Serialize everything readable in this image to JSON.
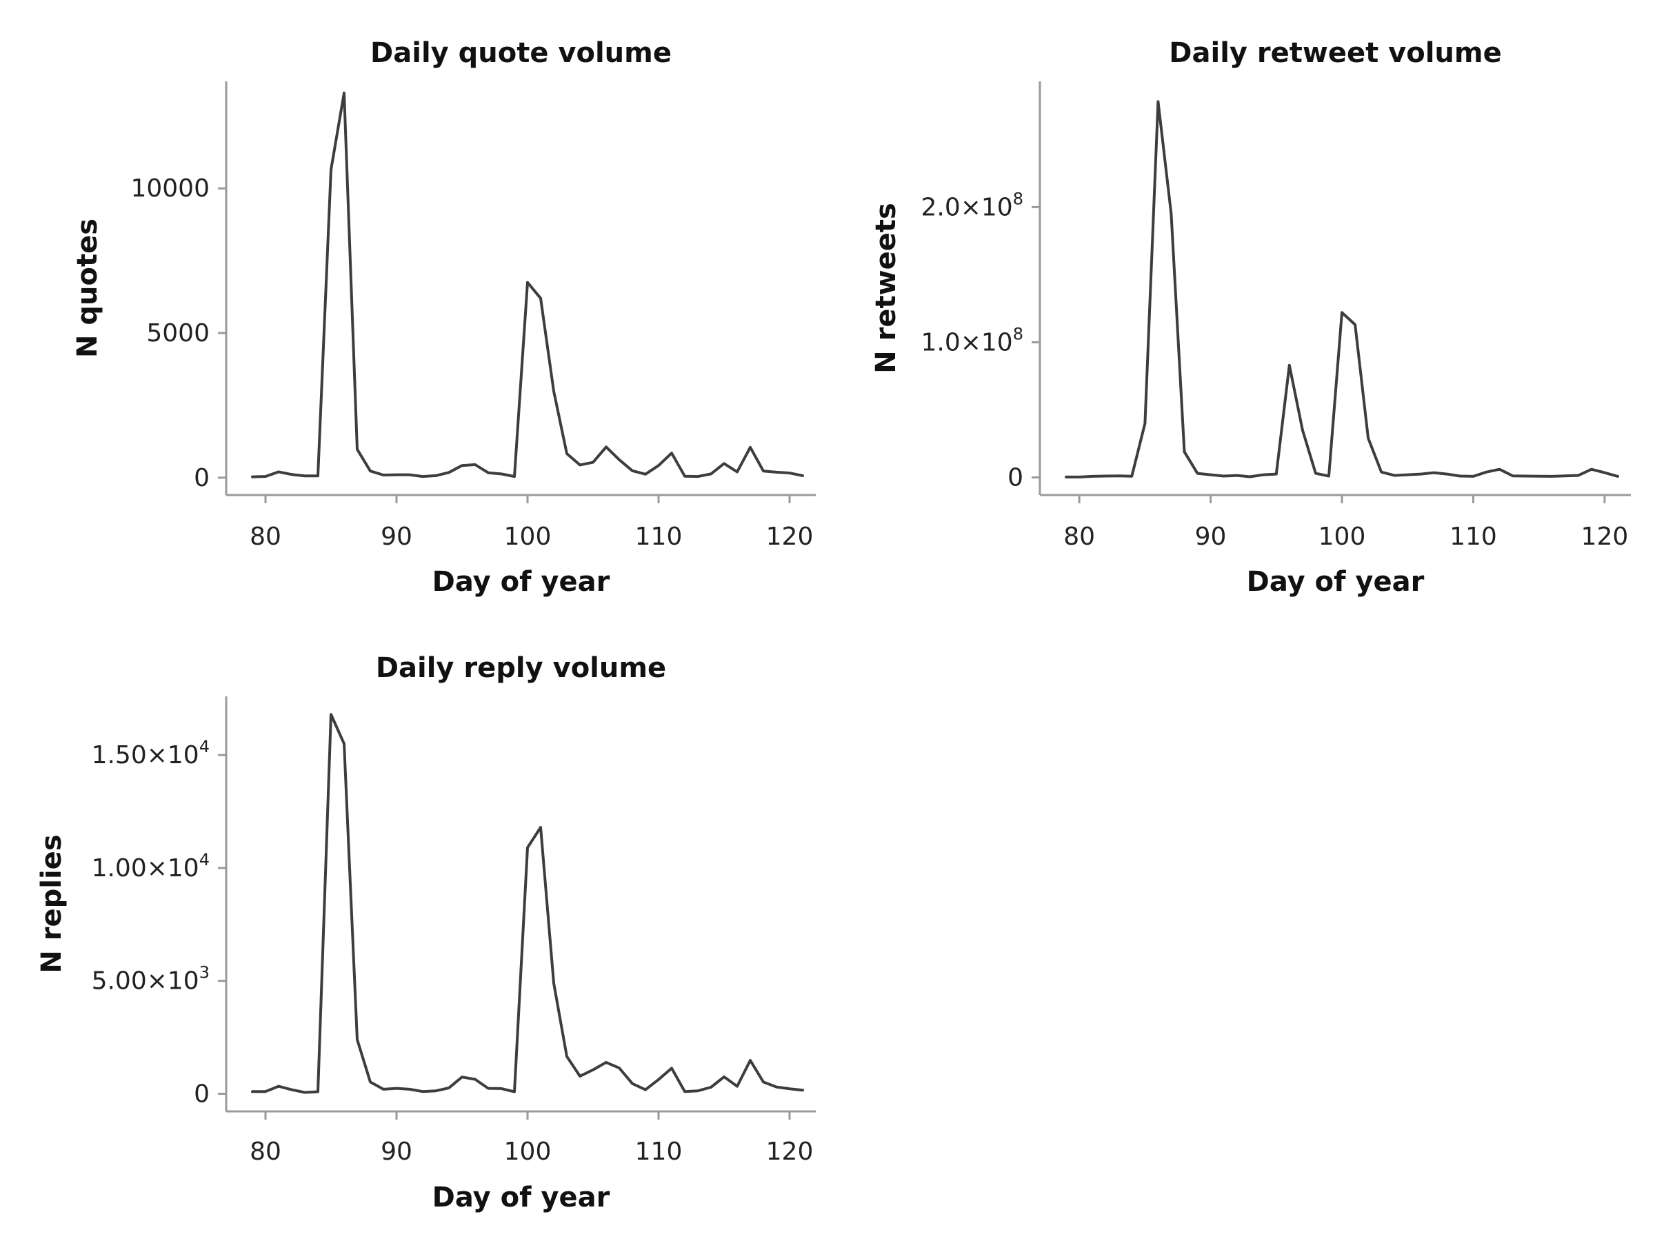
{
  "colors": {
    "line": "#3d3d3d",
    "axis": "#9a9a9a",
    "text": "#111111"
  },
  "chart_data": [
    {
      "type": "line",
      "title": "Daily quote volume",
      "xlabel": "Day of year",
      "ylabel": "N quotes",
      "xlim": [
        77,
        122
      ],
      "ylim": [
        -600,
        13700
      ],
      "xticks": [
        80,
        90,
        100,
        110,
        120
      ],
      "yticks": [
        {
          "value": 0,
          "base": "0",
          "exp": ""
        },
        {
          "value": 5000,
          "base": "5000",
          "exp": ""
        },
        {
          "value": 10000,
          "base": "10000",
          "exp": ""
        }
      ],
      "x": [
        79,
        80,
        81,
        82,
        83,
        84,
        85,
        86,
        87,
        88,
        89,
        90,
        91,
        92,
        93,
        94,
        95,
        96,
        97,
        98,
        99,
        100,
        101,
        102,
        103,
        104,
        105,
        106,
        107,
        108,
        109,
        110,
        111,
        112,
        113,
        114,
        115,
        116,
        117,
        118,
        119,
        120,
        121
      ],
      "values": [
        30,
        40,
        200,
        110,
        60,
        60,
        10650,
        13300,
        980,
        230,
        90,
        100,
        100,
        40,
        70,
        180,
        420,
        450,
        170,
        130,
        40,
        6750,
        6200,
        2990,
        830,
        440,
        530,
        1060,
        620,
        240,
        120,
        420,
        850,
        50,
        40,
        130,
        490,
        200,
        1050,
        230,
        190,
        160,
        70
      ]
    },
    {
      "type": "line",
      "title": "Daily retweet volume",
      "xlabel": "Day of year",
      "ylabel": "N retweets",
      "xlim": [
        77,
        122
      ],
      "ylim": [
        -13000000,
        293000000
      ],
      "xticks": [
        80,
        90,
        100,
        110,
        120
      ],
      "yticks": [
        {
          "value": 0,
          "base": "0",
          "exp": ""
        },
        {
          "value": 100000000,
          "base": "1.0×10",
          "exp": "8"
        },
        {
          "value": 200000000,
          "base": "2.0×10",
          "exp": "8"
        }
      ],
      "x": [
        79,
        80,
        81,
        82,
        83,
        84,
        85,
        86,
        87,
        88,
        89,
        90,
        91,
        92,
        93,
        94,
        95,
        96,
        97,
        98,
        99,
        100,
        101,
        102,
        103,
        104,
        105,
        106,
        107,
        108,
        109,
        110,
        111,
        112,
        113,
        114,
        115,
        116,
        117,
        118,
        119,
        120,
        121
      ],
      "values": [
        300000,
        300000,
        800000,
        1000000,
        1200000,
        900000,
        40000000,
        278000000,
        195000000,
        19000000,
        3000000,
        2000000,
        1000000,
        1500000,
        500000,
        2000000,
        2500000,
        83000000,
        35000000,
        3000000,
        1000000,
        122000000,
        113000000,
        29000000,
        4000000,
        1500000,
        2000000,
        2500000,
        3500000,
        2500000,
        1000000,
        800000,
        4000000,
        6000000,
        1200000,
        1000000,
        900000,
        800000,
        1200000,
        1500000,
        6000000,
        3500000,
        800000
      ]
    },
    {
      "type": "line",
      "title": "Daily reply volume",
      "xlabel": "Day of year",
      "ylabel": "N replies",
      "xlim": [
        77,
        122
      ],
      "ylim": [
        -780,
        17600
      ],
      "xticks": [
        80,
        90,
        100,
        110,
        120
      ],
      "yticks": [
        {
          "value": 0,
          "base": "0",
          "exp": ""
        },
        {
          "value": 5000,
          "base": "5.00×10",
          "exp": "3"
        },
        {
          "value": 10000,
          "base": "1.00×10",
          "exp": "4"
        },
        {
          "value": 15000,
          "base": "1.50×10",
          "exp": "4"
        }
      ],
      "x": [
        79,
        80,
        81,
        82,
        83,
        84,
        85,
        86,
        87,
        88,
        89,
        90,
        91,
        92,
        93,
        94,
        95,
        96,
        97,
        98,
        99,
        100,
        101,
        102,
        103,
        104,
        105,
        106,
        107,
        108,
        109,
        110,
        111,
        112,
        113,
        114,
        115,
        116,
        117,
        118,
        119,
        120,
        121
      ],
      "values": [
        100,
        100,
        330,
        180,
        60,
        90,
        16800,
        15500,
        2400,
        520,
        200,
        240,
        200,
        100,
        130,
        260,
        740,
        640,
        240,
        230,
        90,
        10900,
        11800,
        4900,
        1650,
        780,
        1060,
        1390,
        1140,
        450,
        180,
        630,
        1130,
        100,
        130,
        290,
        750,
        330,
        1480,
        520,
        300,
        220,
        160
      ]
    }
  ]
}
